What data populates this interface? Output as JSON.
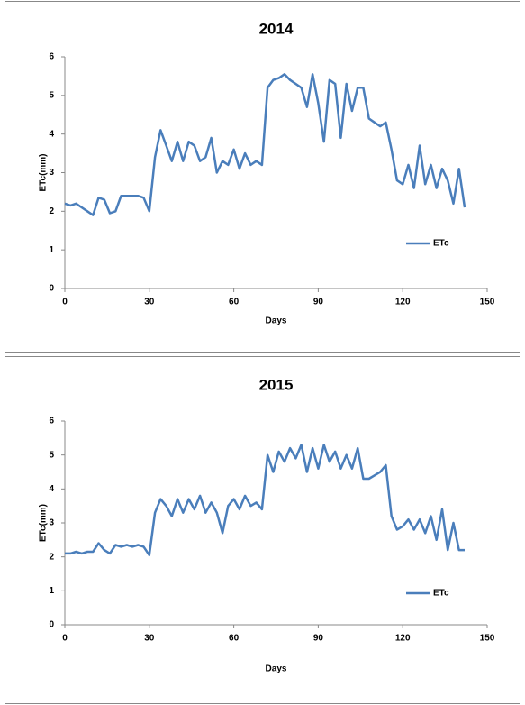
{
  "chart_data": [
    {
      "type": "line",
      "title": "2014",
      "xlabel": "Days",
      "ylabel": "ETc(mm)",
      "x": [
        0,
        2,
        4,
        6,
        8,
        10,
        12,
        14,
        16,
        18,
        20,
        22,
        24,
        26,
        28,
        30,
        32,
        34,
        36,
        38,
        40,
        42,
        44,
        46,
        48,
        50,
        52,
        54,
        56,
        58,
        60,
        62,
        64,
        66,
        68,
        70,
        72,
        74,
        76,
        78,
        80,
        82,
        84,
        86,
        88,
        90,
        92,
        94,
        96,
        98,
        100,
        102,
        104,
        106,
        108,
        110,
        112,
        114,
        116,
        118,
        120,
        122,
        124,
        126,
        128,
        130,
        132,
        134,
        136,
        138,
        140,
        142
      ],
      "series": [
        {
          "name": "ETc",
          "color": "#4a7ebb",
          "values": [
            2.2,
            2.15,
            2.2,
            2.1,
            2.0,
            1.9,
            2.35,
            2.3,
            1.95,
            2.0,
            2.4,
            2.4,
            2.4,
            2.4,
            2.35,
            2.0,
            3.4,
            4.1,
            3.7,
            3.3,
            3.8,
            3.3,
            3.8,
            3.7,
            3.3,
            3.4,
            3.9,
            3.0,
            3.3,
            3.2,
            3.6,
            3.1,
            3.5,
            3.2,
            3.3,
            3.2,
            5.2,
            5.4,
            5.45,
            5.55,
            5.4,
            5.3,
            5.2,
            4.7,
            5.55,
            4.8,
            3.8,
            5.4,
            5.3,
            3.9,
            5.3,
            4.6,
            5.2,
            5.2,
            4.4,
            4.3,
            4.2,
            4.3,
            3.6,
            2.8,
            2.7,
            3.2,
            2.6,
            3.7,
            2.7,
            3.2,
            2.6,
            3.1,
            2.8,
            2.2,
            3.1,
            2.1
          ]
        }
      ],
      "xlim": [
        0,
        150
      ],
      "xticks": [
        0,
        30,
        60,
        90,
        120,
        150
      ],
      "ylim": [
        0,
        6
      ],
      "yticks": [
        0,
        1,
        2,
        3,
        4,
        5,
        6
      ],
      "grid": false,
      "legend": "right"
    },
    {
      "type": "line",
      "title": "2015",
      "xlabel": "Days",
      "ylabel": "ETc(mm)",
      "x": [
        0,
        2,
        4,
        6,
        8,
        10,
        12,
        14,
        16,
        18,
        20,
        22,
        24,
        26,
        28,
        30,
        32,
        34,
        36,
        38,
        40,
        42,
        44,
        46,
        48,
        50,
        52,
        54,
        56,
        58,
        60,
        62,
        64,
        66,
        68,
        70,
        72,
        74,
        76,
        78,
        80,
        82,
        84,
        86,
        88,
        90,
        92,
        94,
        96,
        98,
        100,
        102,
        104,
        106,
        108,
        110,
        112,
        114,
        116,
        118,
        120,
        122,
        124,
        126,
        128,
        130,
        132,
        134,
        136,
        138,
        140,
        142
      ],
      "series": [
        {
          "name": "ETc",
          "color": "#4a7ebb",
          "values": [
            2.1,
            2.1,
            2.15,
            2.1,
            2.15,
            2.15,
            2.4,
            2.2,
            2.1,
            2.35,
            2.3,
            2.35,
            2.3,
            2.35,
            2.3,
            2.05,
            3.3,
            3.7,
            3.5,
            3.2,
            3.7,
            3.3,
            3.7,
            3.4,
            3.8,
            3.3,
            3.6,
            3.3,
            2.7,
            3.5,
            3.7,
            3.4,
            3.8,
            3.5,
            3.6,
            3.4,
            5.0,
            4.5,
            5.1,
            4.8,
            5.2,
            4.9,
            5.3,
            4.5,
            5.2,
            4.6,
            5.3,
            4.8,
            5.1,
            4.6,
            5.0,
            4.6,
            5.2,
            4.3,
            4.3,
            4.4,
            4.5,
            4.7,
            3.2,
            2.8,
            2.9,
            3.1,
            2.8,
            3.1,
            2.7,
            3.2,
            2.5,
            3.4,
            2.2,
            3.0,
            2.2,
            2.2
          ]
        }
      ],
      "xlim": [
        0,
        150
      ],
      "xticks": [
        0,
        30,
        60,
        90,
        120,
        150
      ],
      "ylim": [
        0,
        6
      ],
      "yticks": [
        0,
        1,
        2,
        3,
        4,
        5,
        6
      ],
      "grid": false,
      "legend": "right"
    }
  ]
}
